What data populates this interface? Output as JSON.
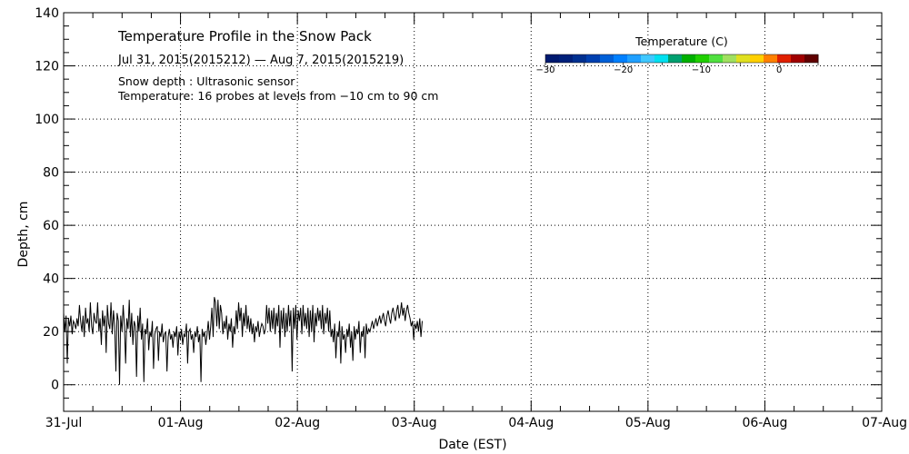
{
  "chart_data": {
    "type": "line",
    "title": "Temperature Profile in the Snow Pack",
    "subtitle": "Jul 31, 2015(2015212) — Aug  7, 2015(2015219)",
    "notes": [
      "Snow depth : Ultrasonic sensor",
      "Temperature: 16 probes at levels from −10 cm to 90 cm"
    ],
    "xlabel": "Date (EST)",
    "ylabel": "Depth, cm",
    "xlim": [
      0,
      7
    ],
    "ylim": [
      -10,
      140
    ],
    "x_ticks": [
      {
        "value": 0,
        "label": "31-Jul"
      },
      {
        "value": 1,
        "label": "01-Aug"
      },
      {
        "value": 2,
        "label": "02-Aug"
      },
      {
        "value": 3,
        "label": "03-Aug"
      },
      {
        "value": 4,
        "label": "04-Aug"
      },
      {
        "value": 5,
        "label": "05-Aug"
      },
      {
        "value": 6,
        "label": "06-Aug"
      },
      {
        "value": 7,
        "label": "07-Aug"
      }
    ],
    "y_ticks": [
      0,
      20,
      40,
      60,
      80,
      100,
      120,
      140
    ],
    "grid": true,
    "series": [
      {
        "name": "Snow depth",
        "color": "#000000",
        "x_start": 0,
        "x_step": 0.0104,
        "values": [
          27,
          20,
          26,
          8,
          25,
          22,
          26,
          19,
          24,
          23,
          21,
          25,
          22,
          30,
          24,
          20,
          26,
          18,
          29,
          23,
          25,
          20,
          31,
          22,
          19,
          27,
          24,
          23,
          31,
          20,
          25,
          15,
          28,
          22,
          26,
          12,
          30,
          23,
          21,
          31,
          19,
          28,
          22,
          5,
          27,
          24,
          0,
          26,
          20,
          30,
          22,
          8,
          25,
          21,
          32,
          18,
          27,
          15,
          24,
          22,
          3,
          26,
          20,
          29,
          17,
          23,
          1,
          21,
          19,
          25,
          13,
          20,
          18,
          24,
          6,
          19,
          21,
          22,
          9,
          20,
          18,
          23,
          16,
          19,
          20,
          5,
          18,
          21,
          17,
          19,
          14,
          20,
          18,
          22,
          11,
          20,
          17,
          21,
          15,
          19,
          18,
          23,
          8,
          20,
          21,
          17,
          19,
          12,
          20,
          18,
          22,
          16,
          19,
          1,
          21,
          18,
          20,
          15,
          19,
          24,
          17,
          22,
          29,
          18,
          33,
          31,
          22,
          32,
          21,
          30,
          27,
          19,
          24,
          21,
          26,
          17,
          23,
          20,
          25,
          14,
          22,
          19,
          28,
          21,
          31,
          24,
          29,
          18,
          27,
          22,
          30,
          21,
          26,
          20,
          25,
          19,
          23,
          16,
          22,
          20,
          24,
          18,
          21,
          23,
          22,
          19,
          21,
          30,
          23,
          29,
          20,
          28,
          21,
          29,
          19,
          27,
          22,
          30,
          14,
          28,
          21,
          29,
          18,
          27,
          20,
          30,
          22,
          28,
          5,
          29,
          21,
          30,
          17,
          28,
          24,
          29,
          19,
          30,
          22,
          27,
          21,
          29,
          18,
          28,
          20,
          30,
          16,
          27,
          22,
          29,
          24,
          28,
          21,
          30,
          19,
          27,
          23,
          29,
          20,
          28,
          18,
          21,
          16,
          23,
          10,
          20,
          18,
          24,
          8,
          22,
          17,
          19,
          12,
          21,
          18,
          23,
          14,
          20,
          9,
          22,
          17,
          21,
          19,
          24,
          12,
          20,
          18,
          22,
          10,
          23,
          19,
          21,
          20,
          22,
          24,
          21,
          23,
          25,
          22,
          24,
          26,
          23,
          25,
          27,
          24,
          22,
          26,
          28,
          25,
          23,
          27,
          29,
          26,
          24,
          28,
          30,
          25,
          27,
          31,
          26,
          29,
          24,
          28,
          30,
          27,
          25,
          22,
          24,
          17,
          23,
          21,
          24,
          20,
          25,
          18,
          24
        ]
      }
    ],
    "colorbar": {
      "label": "Temperature (C)",
      "range": [
        -30,
        5
      ],
      "tick_labels": [
        {
          "value": -30,
          "label": "−30"
        },
        {
          "value": -20,
          "label": "−20"
        },
        {
          "value": -10,
          "label": "−10"
        },
        {
          "value": 0,
          "label": "0"
        }
      ],
      "colors": [
        "#001a70",
        "#00207a",
        "#003090",
        "#0040b0",
        "#0060d8",
        "#0080ff",
        "#20a0ff",
        "#40c8ff",
        "#00e0f0",
        "#00a070",
        "#00b000",
        "#20d000",
        "#50e040",
        "#a0e060",
        "#e0e020",
        "#ffd000",
        "#ff8000",
        "#e02000",
        "#a00000",
        "#600000"
      ]
    }
  }
}
